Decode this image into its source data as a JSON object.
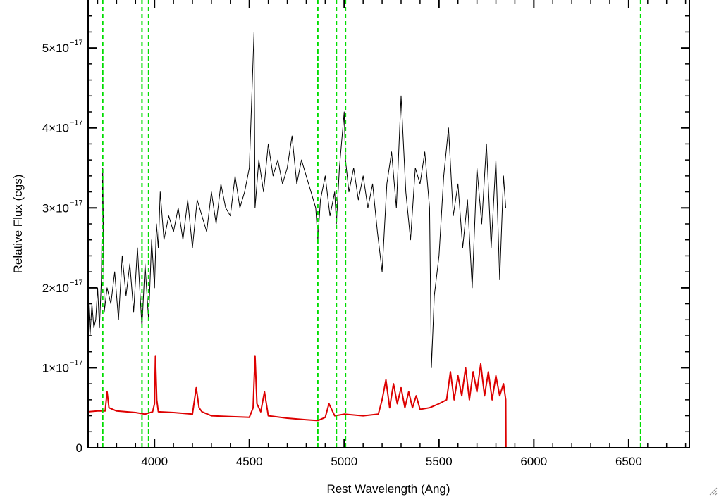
{
  "chart_data": {
    "type": "line",
    "title": "",
    "xlabel": "Rest Wavelength (Ang)",
    "ylabel": "Relative Flux (cgs)",
    "xlim": [
      3650,
      6820
    ],
    "ylim": [
      0,
      5.6e-17
    ],
    "x_ticks": [
      4000,
      4500,
      5000,
      5500,
      6000,
      6500
    ],
    "x_tick_labels": [
      "4000",
      "4500",
      "5000",
      "5500",
      "6000",
      "6500"
    ],
    "y_ticks": [
      0,
      1e-17,
      2e-17,
      3e-17,
      4e-17,
      5e-17
    ],
    "y_tick_labels": [
      {
        "mantissa": "0",
        "exponent": ""
      },
      {
        "mantissa": "1×10",
        "exponent": "−17"
      },
      {
        "mantissa": "2×10",
        "exponent": "−17"
      },
      {
        "mantissa": "3×10",
        "exponent": "−17"
      },
      {
        "mantissa": "4×10",
        "exponent": "−17"
      },
      {
        "mantissa": "5×10",
        "exponent": "−17"
      }
    ],
    "grid": false,
    "legend": "none",
    "vertical_lines": {
      "color": "#00dd00",
      "style": "dashed",
      "x": [
        3727,
        3934,
        3969,
        4861,
        4959,
        5007,
        6563
      ]
    },
    "series": [
      {
        "color": "#000000",
        "x": [
          3650,
          3660,
          3670,
          3680,
          3690,
          3700,
          3710,
          3720,
          3727,
          3735,
          3750,
          3770,
          3790,
          3810,
          3830,
          3850,
          3870,
          3890,
          3910,
          3934,
          3950,
          3969,
          3985,
          4000,
          4010,
          4020,
          4030,
          4050,
          4075,
          4100,
          4125,
          4150,
          4175,
          4200,
          4225,
          4250,
          4275,
          4300,
          4325,
          4350,
          4375,
          4400,
          4425,
          4450,
          4475,
          4500,
          4525,
          4530,
          4550,
          4575,
          4600,
          4625,
          4650,
          4675,
          4700,
          4725,
          4750,
          4775,
          4800,
          4825,
          4850,
          4861,
          4875,
          4900,
          4925,
          4950,
          4959,
          4975,
          5000,
          5007,
          5025,
          5050,
          5075,
          5100,
          5125,
          5150,
          5175,
          5200,
          5225,
          5250,
          5275,
          5300,
          5325,
          5350,
          5375,
          5400,
          5425,
          5450,
          5460,
          5475,
          5500,
          5525,
          5550,
          5575,
          5600,
          5625,
          5650,
          5675,
          5700,
          5725,
          5750,
          5775,
          5800,
          5820,
          5840,
          5852
        ],
        "y": [
          1.9e-17,
          1.4e-17,
          1.8e-17,
          1.5e-17,
          1.6e-17,
          2e-17,
          1.5e-17,
          2.1e-17,
          3.5e-17,
          1.7e-17,
          2e-17,
          1.8e-17,
          2.2e-17,
          1.6e-17,
          2.4e-17,
          1.9e-17,
          2.3e-17,
          1.7e-17,
          2.5e-17,
          1.5e-17,
          2.3e-17,
          1.6e-17,
          2.6e-17,
          2e-17,
          2.8e-17,
          2.5e-17,
          3.2e-17,
          2.6e-17,
          2.9e-17,
          2.7e-17,
          3e-17,
          2.6e-17,
          3.1e-17,
          2.5e-17,
          3.1e-17,
          2.9e-17,
          2.7e-17,
          3.2e-17,
          2.8e-17,
          3.3e-17,
          3e-17,
          2.9e-17,
          3.4e-17,
          3e-17,
          3.2e-17,
          3.5e-17,
          5.2e-17,
          3e-17,
          3.6e-17,
          3.2e-17,
          3.8e-17,
          3.4e-17,
          3.6e-17,
          3.3e-17,
          3.5e-17,
          3.9e-17,
          3.3e-17,
          3.6e-17,
          3.4e-17,
          3.2e-17,
          3e-17,
          2.6e-17,
          3.1e-17,
          3.4e-17,
          2.9e-17,
          3.2e-17,
          2.8e-17,
          3.5e-17,
          4.2e-17,
          3.6e-17,
          3.2e-17,
          3.5e-17,
          3.1e-17,
          3.4e-17,
          3e-17,
          3.3e-17,
          2.7e-17,
          2.2e-17,
          3.3e-17,
          3.7e-17,
          3e-17,
          4.4e-17,
          3.2e-17,
          2.6e-17,
          3.5e-17,
          3.3e-17,
          3.7e-17,
          3e-17,
          1e-17,
          1.9e-17,
          2.4e-17,
          3.4e-17,
          4e-17,
          2.9e-17,
          3.3e-17,
          2.5e-17,
          3.1e-17,
          2e-17,
          3.5e-17,
          2.8e-17,
          3.8e-17,
          2.5e-17,
          3.6e-17,
          2.1e-17,
          3.4e-17,
          3e-17
        ]
      },
      {
        "color": "#dd0000",
        "x": [
          3650,
          3700,
          3740,
          3750,
          3760,
          3800,
          3850,
          3900,
          3950,
          3990,
          4000,
          4005,
          4012,
          4020,
          4100,
          4200,
          4220,
          4235,
          4250,
          4300,
          4400,
          4500,
          4520,
          4530,
          4540,
          4560,
          4580,
          4600,
          4700,
          4800,
          4861,
          4900,
          4920,
          4950,
          5000,
          5100,
          5180,
          5200,
          5220,
          5240,
          5260,
          5280,
          5300,
          5320,
          5340,
          5360,
          5380,
          5400,
          5450,
          5500,
          5540,
          5560,
          5580,
          5600,
          5620,
          5640,
          5660,
          5680,
          5700,
          5720,
          5740,
          5760,
          5780,
          5800,
          5820,
          5840,
          5852,
          5853,
          6000,
          6820
        ],
        "y": [
          4.5e-18,
          4.6e-18,
          4.6e-18,
          7e-18,
          5e-18,
          4.6e-18,
          4.5e-18,
          4.4e-18,
          4.2e-18,
          4.5e-18,
          5.5e-18,
          1.15e-17,
          6e-18,
          4.5e-18,
          4.4e-18,
          4.2e-18,
          7.5e-18,
          5e-18,
          4.5e-18,
          4e-18,
          3.9e-18,
          3.8e-18,
          5e-18,
          1.15e-17,
          5.5e-18,
          4.5e-18,
          7e-18,
          4e-18,
          3.7e-18,
          3.5e-18,
          3.4e-18,
          3.8e-18,
          5.5e-18,
          4e-18,
          4.2e-18,
          4e-18,
          4.2e-18,
          6e-18,
          8.5e-18,
          5e-18,
          8e-18,
          5.5e-18,
          7.5e-18,
          5e-18,
          7e-18,
          5e-18,
          6.5e-18,
          4.8e-18,
          5e-18,
          5.5e-18,
          6e-18,
          9.5e-18,
          6e-18,
          9e-18,
          6.5e-18,
          1e-17,
          6e-18,
          9.5e-18,
          7e-18,
          1.05e-17,
          6.5e-18,
          9.5e-18,
          6e-18,
          9e-18,
          6.5e-18,
          8e-18,
          6e-18,
          0.0,
          0.0,
          0.0
        ]
      }
    ]
  }
}
